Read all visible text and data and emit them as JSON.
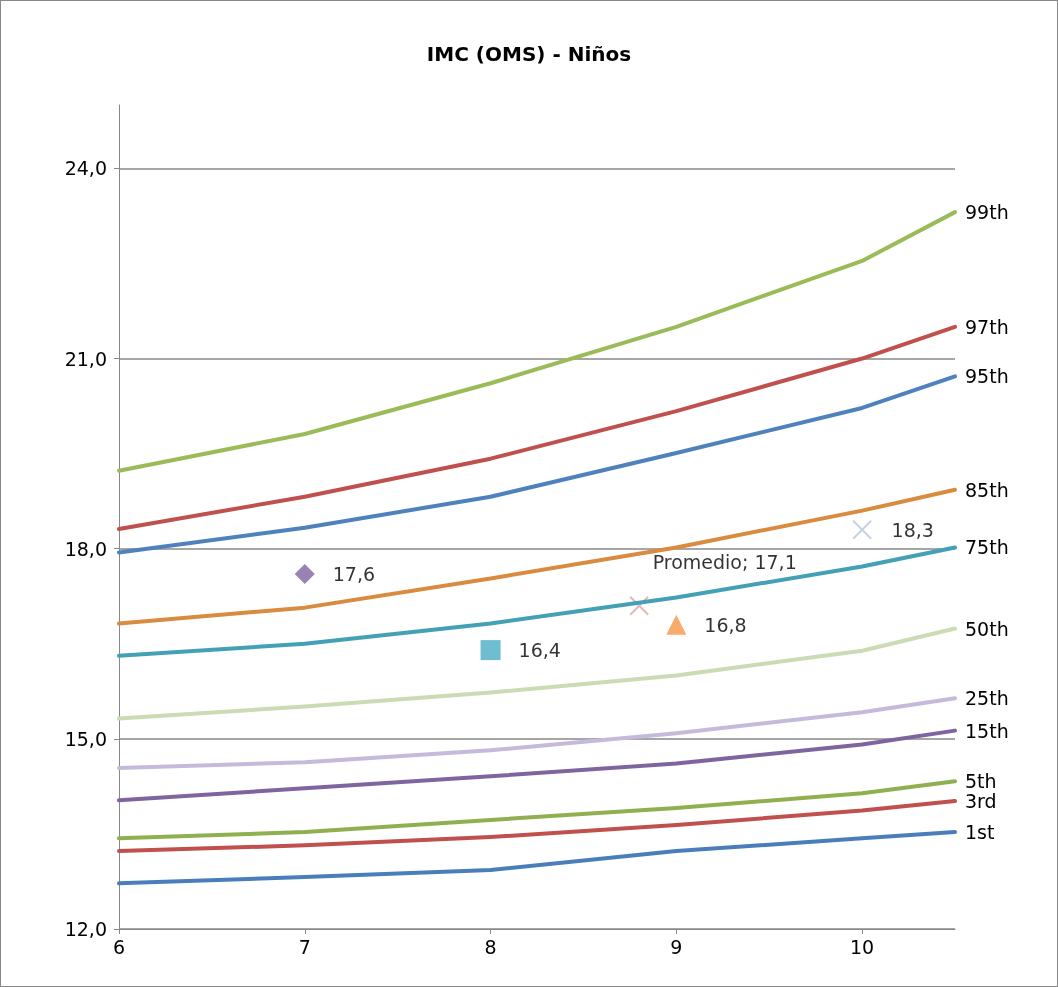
{
  "chart_data": {
    "type": "line",
    "title": "IMC (OMS) - Niños",
    "xlim": [
      6,
      10.5
    ],
    "xticks": [
      6,
      7,
      8,
      9,
      10
    ],
    "ylim": [
      12,
      25
    ],
    "yticks": [
      {
        "value": 12,
        "label": "12,0"
      },
      {
        "value": 15,
        "label": "15,0"
      },
      {
        "value": 18,
        "label": "18,0"
      },
      {
        "value": 21,
        "label": "21,0"
      },
      {
        "value": 24,
        "label": "24,0"
      }
    ],
    "grid": "y",
    "legend": false,
    "marker": "none",
    "line_style": "solid",
    "x": [
      6,
      7,
      8,
      9,
      10,
      10.5
    ],
    "series": [
      {
        "name": "99th",
        "color": "#9bbb59",
        "values": [
          19.23,
          19.81,
          20.61,
          21.5,
          22.54,
          23.31
        ]
      },
      {
        "name": "97th",
        "color": "#c0504d",
        "values": [
          18.31,
          18.82,
          19.42,
          20.17,
          21.0,
          21.5
        ]
      },
      {
        "name": "95th",
        "color": "#4f81bd",
        "values": [
          17.94,
          18.33,
          18.82,
          19.51,
          20.22,
          20.72
        ]
      },
      {
        "name": "85th",
        "color": "#d98b3f",
        "values": [
          16.82,
          17.07,
          17.53,
          18.02,
          18.6,
          18.93
        ]
      },
      {
        "name": "75th",
        "color": "#43a0b5",
        "values": [
          16.31,
          16.5,
          16.82,
          17.23,
          17.72,
          18.02
        ]
      },
      {
        "name": "50th",
        "color": "#cbdbb3",
        "values": [
          15.32,
          15.51,
          15.73,
          16.0,
          16.39,
          16.74
        ]
      },
      {
        "name": "25th",
        "color": "#c5bada",
        "values": [
          14.54,
          14.63,
          14.82,
          15.09,
          15.42,
          15.64
        ]
      },
      {
        "name": "15th",
        "color": "#7f649f",
        "values": [
          14.03,
          14.22,
          14.41,
          14.61,
          14.91,
          15.13
        ]
      },
      {
        "name": "5th",
        "color": "#8fb050",
        "values": [
          13.43,
          13.53,
          13.72,
          13.91,
          14.14,
          14.33
        ]
      },
      {
        "name": "3rd",
        "color": "#c0504d",
        "values": [
          13.23,
          13.32,
          13.45,
          13.64,
          13.87,
          14.02
        ]
      },
      {
        "name": "1st",
        "color": "#4a7ebb",
        "values": [
          12.72,
          12.82,
          12.93,
          13.23,
          13.43,
          13.53
        ]
      },
      {
        "type": "scatter",
        "marker": "diamond",
        "color": "#8064a2",
        "x": [
          7
        ],
        "values": [
          17.6
        ],
        "value_labels": [
          "17,6"
        ]
      },
      {
        "type": "scatter",
        "marker": "square",
        "color": "#4bacc6",
        "x": [
          8
        ],
        "values": [
          16.4
        ],
        "value_labels": [
          "16,4"
        ]
      },
      {
        "type": "scatter",
        "marker": "cross",
        "color": "#d9a8a8",
        "x": [
          8.8
        ],
        "values": [
          17.1
        ],
        "value_labels": [
          "Promedio; 17,1"
        ]
      },
      {
        "type": "scatter",
        "marker": "triangle",
        "color": "#f79646",
        "x": [
          9
        ],
        "values": [
          16.8
        ],
        "value_labels": [
          "16,8"
        ]
      },
      {
        "type": "scatter",
        "marker": "cross",
        "color": "#b9c6dc",
        "x": [
          10
        ],
        "values": [
          18.3
        ],
        "value_labels": [
          "18,3"
        ]
      }
    ]
  }
}
